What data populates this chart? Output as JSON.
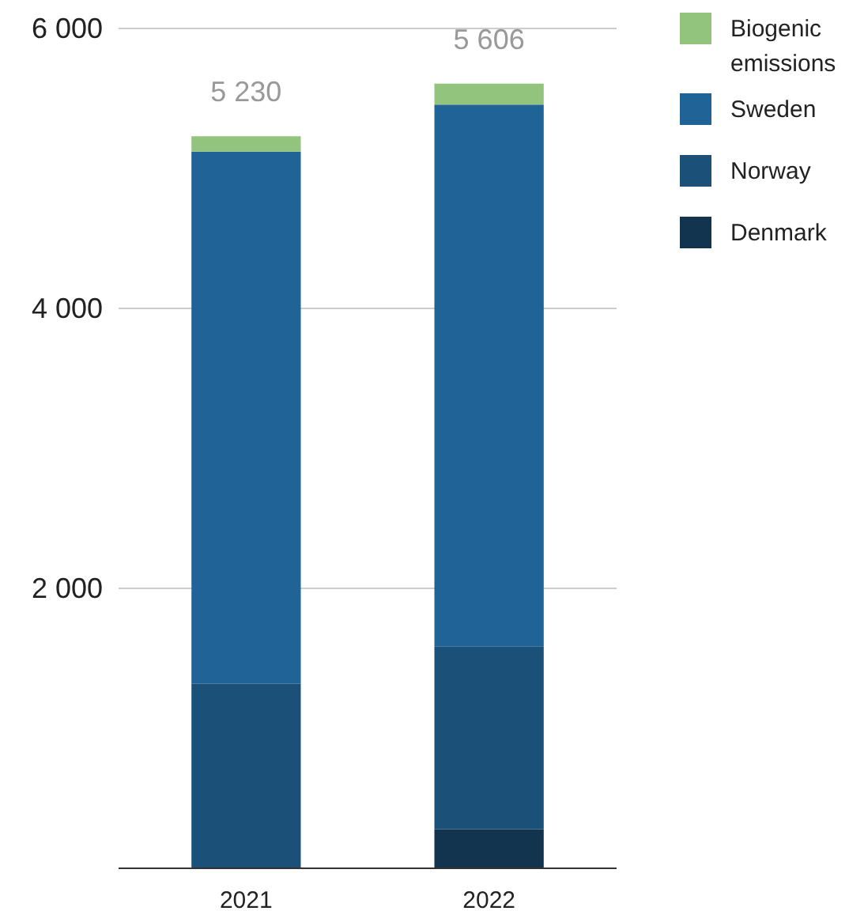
{
  "chart_data": {
    "type": "bar",
    "stacked": true,
    "categories": [
      "2021",
      "2022"
    ],
    "series": [
      {
        "name": "Denmark",
        "color": "#12344f",
        "values": [
          0,
          280
        ]
      },
      {
        "name": "Norway",
        "color": "#1b5078",
        "values": [
          1320,
          1306
        ]
      },
      {
        "name": "Sweden",
        "color": "#1f6397",
        "values": [
          3800,
          3870
        ]
      },
      {
        "name": "Biogenic emissions",
        "color": "#93c47d",
        "values": [
          110,
          150
        ]
      }
    ],
    "totals": [
      "5 230",
      "5 606"
    ],
    "ylim": [
      0,
      6000
    ],
    "yticks": [
      {
        "value": 0,
        "label": null
      },
      {
        "value": 2000,
        "label": "2 000"
      },
      {
        "value": 4000,
        "label": "4 000"
      },
      {
        "value": 6000,
        "label": "6 000"
      }
    ],
    "grid": "y",
    "legend": "right"
  }
}
